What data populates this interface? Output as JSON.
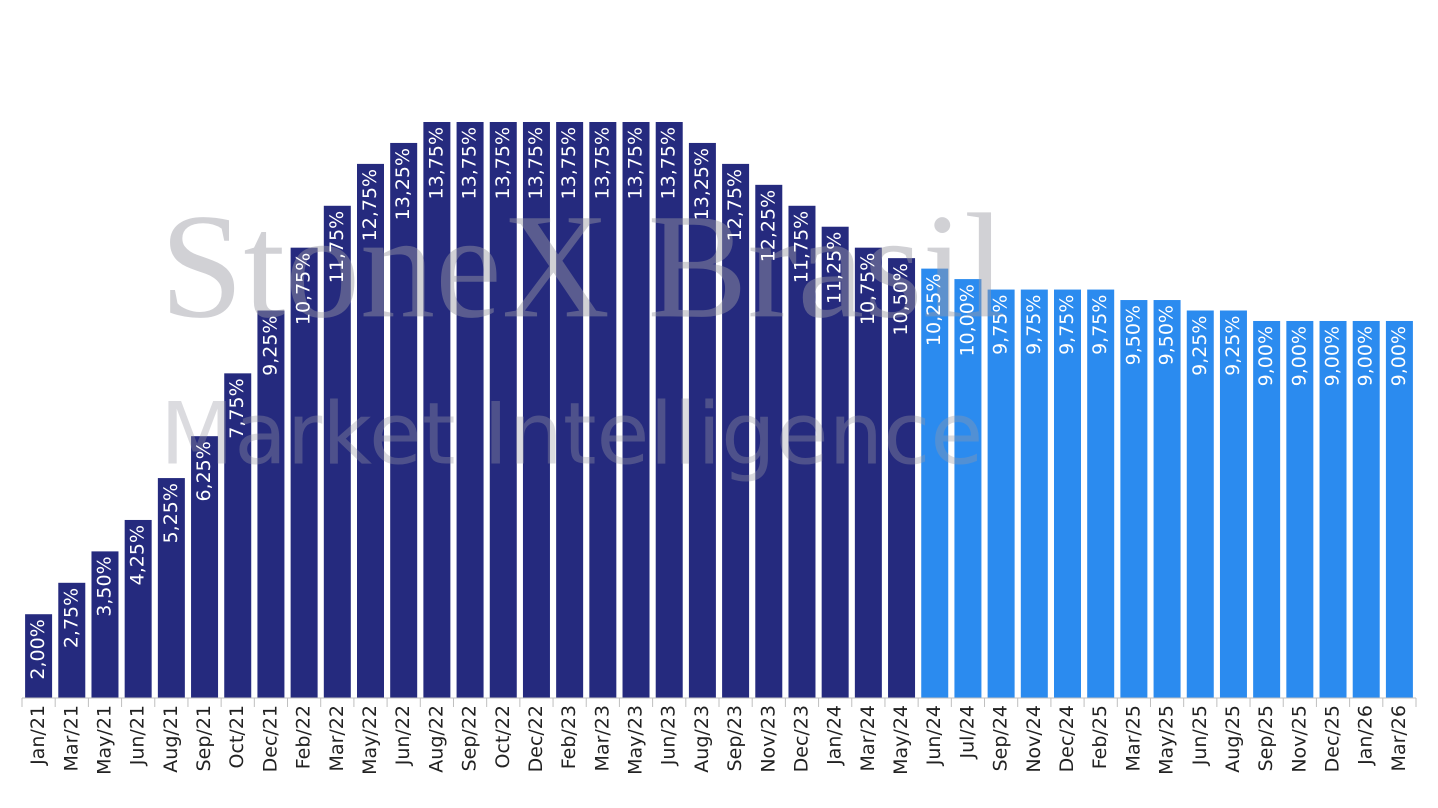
{
  "chart_data": {
    "type": "bar",
    "watermark": [
      "StoneX Brasil",
      "Market Intelligence"
    ],
    "categories": [
      "Jan/21",
      "Mar/21",
      "May/21",
      "Jun/21",
      "Aug/21",
      "Sep/21",
      "Oct/21",
      "Dec/21",
      "Feb/22",
      "Mar/22",
      "May/22",
      "Jun/22",
      "Aug/22",
      "Sep/22",
      "Oct/22",
      "Dec/22",
      "Feb/23",
      "Mar/23",
      "May/23",
      "Jun/23",
      "Aug/23",
      "Sep/23",
      "Nov/23",
      "Dec/23",
      "Jan/24",
      "Mar/24",
      "May/24",
      "Jun/24",
      "Jul/24",
      "Sep/24",
      "Nov/24",
      "Dec/24",
      "Feb/25",
      "Mar/25",
      "May/25",
      "Jun/25",
      "Aug/25",
      "Sep/25",
      "Nov/25",
      "Dec/25",
      "Jan/26",
      "Mar/26"
    ],
    "values": [
      2.0,
      2.75,
      3.5,
      4.25,
      5.25,
      6.25,
      7.75,
      9.25,
      10.75,
      11.75,
      12.75,
      13.25,
      13.75,
      13.75,
      13.75,
      13.75,
      13.75,
      13.75,
      13.75,
      13.75,
      13.25,
      12.75,
      12.25,
      11.75,
      11.25,
      10.75,
      10.5,
      10.25,
      10.0,
      9.75,
      9.75,
      9.75,
      9.75,
      9.5,
      9.5,
      9.25,
      9.25,
      9.0,
      9.0,
      9.0,
      9.0,
      9.0
    ],
    "value_labels": [
      "2,00%",
      "2,75%",
      "3,50%",
      "4,25%",
      "5,25%",
      "6,25%",
      "7,75%",
      "9,25%",
      "10,75%",
      "11,75%",
      "12,75%",
      "13,25%",
      "13,75%",
      "13,75%",
      "13,75%",
      "13,75%",
      "13,75%",
      "13,75%",
      "13,75%",
      "13,75%",
      "13,25%",
      "12,75%",
      "12,25%",
      "11,75%",
      "11,25%",
      "10,75%",
      "10,50%",
      "10,25%",
      "10,00%",
      "9,75%",
      "9,75%",
      "9,75%",
      "9,75%",
      "9,50%",
      "9,50%",
      "9,25%",
      "9,25%",
      "9,00%",
      "9,00%",
      "9,00%",
      "9,00%",
      "9,00%"
    ],
    "colors": [
      "#252a7e",
      "#252a7e",
      "#252a7e",
      "#252a7e",
      "#252a7e",
      "#252a7e",
      "#252a7e",
      "#252a7e",
      "#252a7e",
      "#252a7e",
      "#252a7e",
      "#252a7e",
      "#252a7e",
      "#252a7e",
      "#252a7e",
      "#252a7e",
      "#252a7e",
      "#252a7e",
      "#252a7e",
      "#252a7e",
      "#252a7e",
      "#252a7e",
      "#252a7e",
      "#252a7e",
      "#252a7e",
      "#252a7e",
      "#252a7e",
      "#2b8bef",
      "#2b8bef",
      "#2b8bef",
      "#2b8bef",
      "#2b8bef",
      "#2b8bef",
      "#2b8bef",
      "#2b8bef",
      "#2b8bef",
      "#2b8bef",
      "#2b8bef",
      "#2b8bef",
      "#2b8bef",
      "#2b8bef",
      "#2b8bef"
    ],
    "ylim": [
      0,
      13.75
    ]
  }
}
